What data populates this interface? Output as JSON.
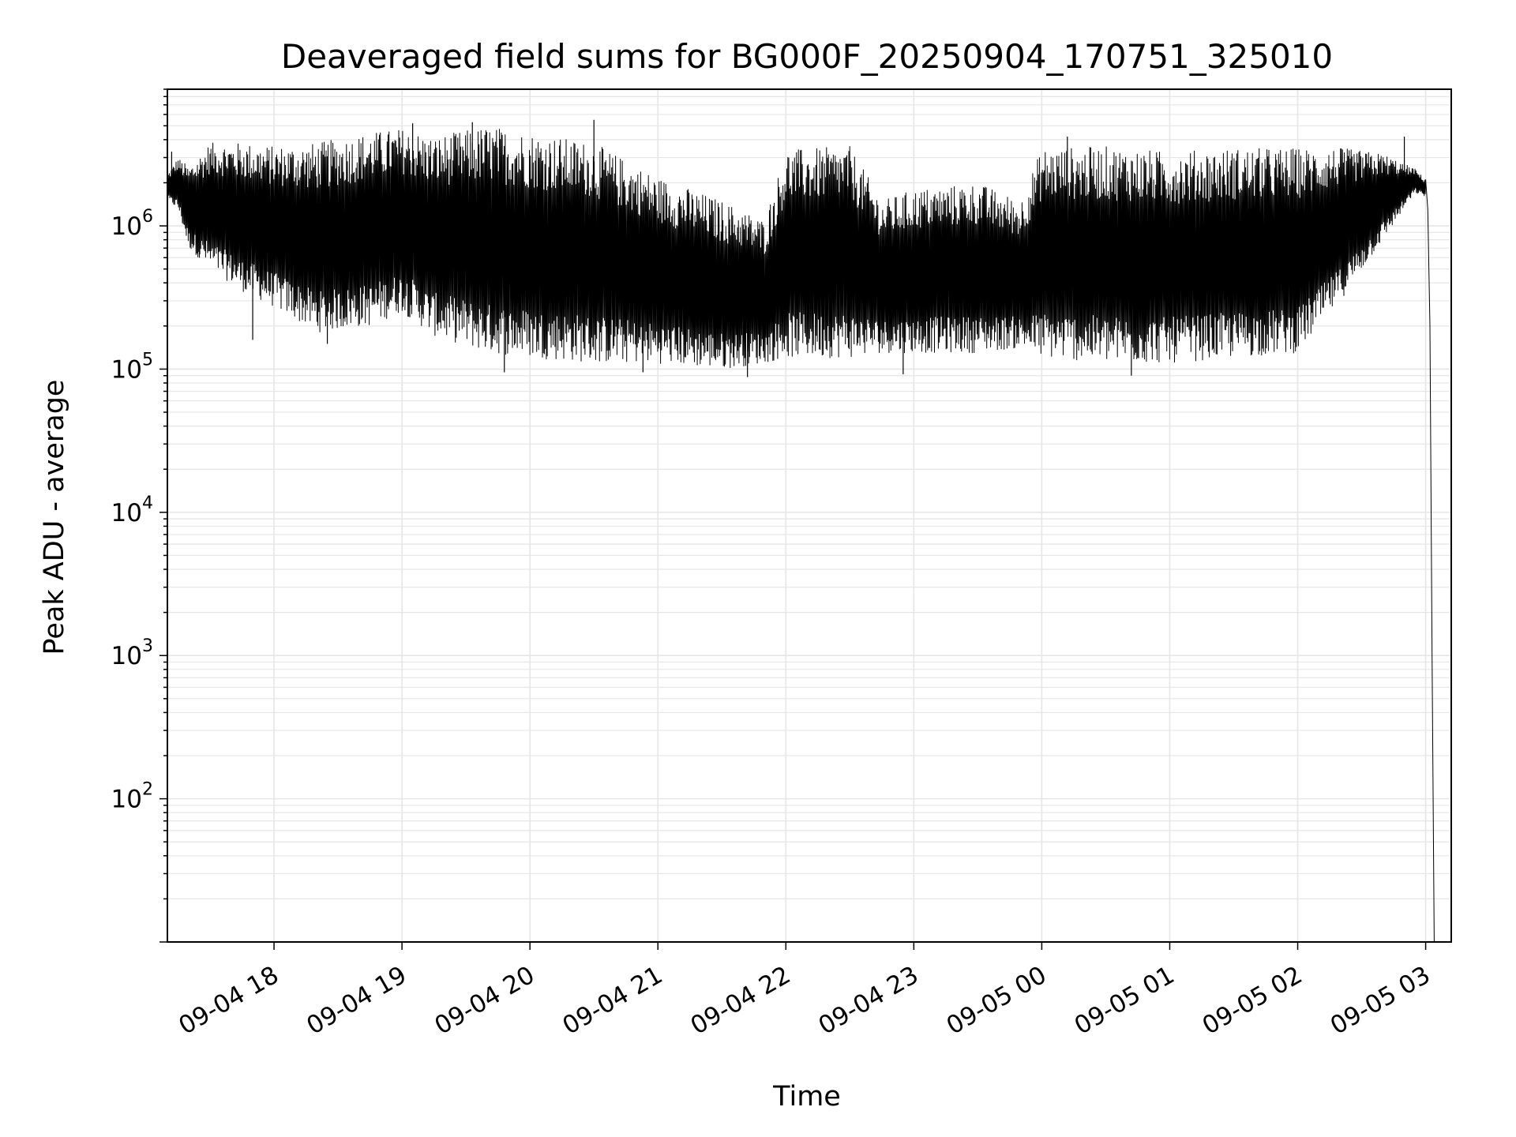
{
  "chart_data": {
    "type": "line",
    "title": "Deaveraged field sums for BG000F_20250904_170751_325010",
    "xlabel": "Time",
    "ylabel": "Peak ADU - average",
    "yscale": "log",
    "xlim": [
      "2025-09-04 17:10",
      "2025-09-05 03:12"
    ],
    "ylim": [
      10,
      9000000
    ],
    "grid": true,
    "line_color": "#000000",
    "grid_color": "#e6e6e6",
    "x_ticks": [
      {
        "value": "2025-09-04 18:00",
        "label": "09-04 18"
      },
      {
        "value": "2025-09-04 19:00",
        "label": "09-04 19"
      },
      {
        "value": "2025-09-04 20:00",
        "label": "09-04 20"
      },
      {
        "value": "2025-09-04 21:00",
        "label": "09-04 21"
      },
      {
        "value": "2025-09-04 22:00",
        "label": "09-04 22"
      },
      {
        "value": "2025-09-04 23:00",
        "label": "09-04 23"
      },
      {
        "value": "2025-09-05 00:00",
        "label": "09-05 00"
      },
      {
        "value": "2025-09-05 01:00",
        "label": "09-05 01"
      },
      {
        "value": "2025-09-05 02:00",
        "label": "09-05 02"
      },
      {
        "value": "2025-09-05 03:00",
        "label": "09-05 03"
      }
    ],
    "y_ticks": [
      {
        "value": 100,
        "base": "10",
        "exp": "2"
      },
      {
        "value": 1000,
        "base": "10",
        "exp": "3"
      },
      {
        "value": 10000,
        "base": "10",
        "exp": "4"
      },
      {
        "value": 100000,
        "base": "10",
        "exp": "5"
      },
      {
        "value": 1000000,
        "base": "10",
        "exp": "6"
      }
    ],
    "series": [
      {
        "envelope": [
          {
            "t": "2025-09-04 17:10",
            "low": 1500000,
            "high": 2300000
          },
          {
            "t": "2025-09-04 17:15",
            "low": 1300000,
            "high": 3000000
          },
          {
            "t": "2025-09-04 17:20",
            "low": 700000,
            "high": 2600000
          },
          {
            "t": "2025-09-04 17:30",
            "low": 500000,
            "high": 3800000
          },
          {
            "t": "2025-09-04 17:45",
            "low": 350000,
            "high": 3800000
          },
          {
            "t": "2025-09-04 18:00",
            "low": 270000,
            "high": 3600000
          },
          {
            "t": "2025-09-04 18:20",
            "low": 180000,
            "high": 3800000
          },
          {
            "t": "2025-09-04 18:45",
            "low": 200000,
            "high": 4500000
          },
          {
            "t": "2025-09-04 19:00",
            "low": 250000,
            "high": 4800000
          },
          {
            "t": "2025-09-04 19:15",
            "low": 170000,
            "high": 4200000
          },
          {
            "t": "2025-09-04 19:40",
            "low": 130000,
            "high": 5000000
          },
          {
            "t": "2025-09-04 20:00",
            "low": 120000,
            "high": 4500000
          },
          {
            "t": "2025-09-04 20:30",
            "low": 110000,
            "high": 3800000
          },
          {
            "t": "2025-09-04 21:00",
            "low": 110000,
            "high": 2200000
          },
          {
            "t": "2025-09-04 21:30",
            "low": 100000,
            "high": 1500000
          },
          {
            "t": "2025-09-04 21:50",
            "low": 110000,
            "high": 1100000
          },
          {
            "t": "2025-09-04 22:00",
            "low": 120000,
            "high": 3400000
          },
          {
            "t": "2025-09-04 22:30",
            "low": 120000,
            "high": 3600000
          },
          {
            "t": "2025-09-04 22:45",
            "low": 130000,
            "high": 1500000
          },
          {
            "t": "2025-09-04 23:00",
            "low": 130000,
            "high": 1800000
          },
          {
            "t": "2025-09-04 23:30",
            "low": 130000,
            "high": 2000000
          },
          {
            "t": "2025-09-04 23:50",
            "low": 140000,
            "high": 1500000
          },
          {
            "t": "2025-09-05 00:00",
            "low": 120000,
            "high": 3500000
          },
          {
            "t": "2025-09-05 00:30",
            "low": 110000,
            "high": 3600000
          },
          {
            "t": "2025-09-05 01:00",
            "low": 110000,
            "high": 3300000
          },
          {
            "t": "2025-09-05 01:30",
            "low": 120000,
            "high": 3500000
          },
          {
            "t": "2025-09-05 02:00",
            "low": 130000,
            "high": 3500000
          },
          {
            "t": "2025-09-05 02:20",
            "low": 300000,
            "high": 3500000
          },
          {
            "t": "2025-09-05 02:40",
            "low": 800000,
            "high": 3200000
          },
          {
            "t": "2025-09-05 02:55",
            "low": 1700000,
            "high": 2500000
          },
          {
            "t": "2025-09-05 03:00",
            "low": 1600000,
            "high": 2100000
          }
        ],
        "spikes": [
          {
            "t": "2025-09-04 17:12",
            "value": 3300000
          },
          {
            "t": "2025-09-04 17:25",
            "value": 600000
          },
          {
            "t": "2025-09-04 17:50",
            "value": 160000
          },
          {
            "t": "2025-09-04 18:25",
            "value": 150000
          },
          {
            "t": "2025-09-04 19:05",
            "value": 5200000
          },
          {
            "t": "2025-09-04 19:33",
            "value": 5300000
          },
          {
            "t": "2025-09-04 19:48",
            "value": 95000
          },
          {
            "t": "2025-09-04 20:30",
            "value": 5500000
          },
          {
            "t": "2025-09-04 20:53",
            "value": 95000
          },
          {
            "t": "2025-09-04 21:42",
            "value": 88000
          },
          {
            "t": "2025-09-04 22:55",
            "value": 92000
          },
          {
            "t": "2025-09-05 00:12",
            "value": 4200000
          },
          {
            "t": "2025-09-05 00:42",
            "value": 90000
          },
          {
            "t": "2025-09-05 02:50",
            "value": 4200000
          }
        ],
        "tail": [
          {
            "t": "2025-09-05 03:00",
            "value": 2100000
          },
          {
            "t": "2025-09-05 03:01",
            "value": 1300000
          },
          {
            "t": "2025-09-05 03:02",
            "value": 200000
          },
          {
            "t": "2025-09-05 03:03",
            "value": 1000
          },
          {
            "t": "2025-09-05 03:04",
            "value": 10
          }
        ]
      }
    ]
  }
}
